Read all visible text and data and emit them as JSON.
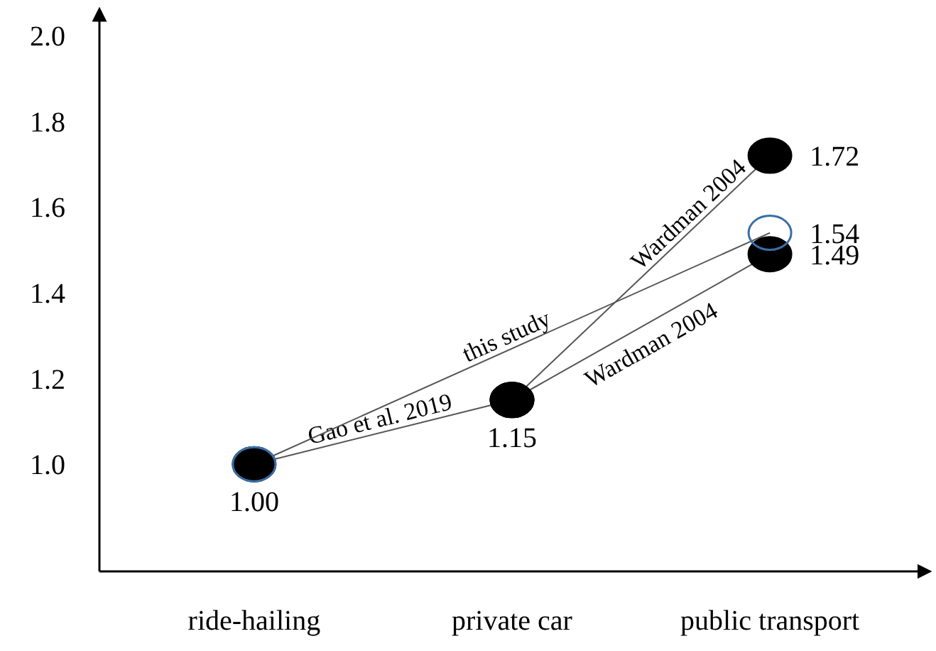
{
  "chart_data": {
    "type": "line",
    "categories": [
      "ride-hailing",
      "private car",
      "public transport"
    ],
    "series": [
      {
        "name": "Gao et al. 2019",
        "color": "#000000",
        "values": [
          1.0,
          1.15,
          null
        ],
        "value_labels": [
          "1.00",
          "1.15",
          null
        ]
      },
      {
        "name": "Wardman 2004",
        "color": "#000000",
        "values": [
          null,
          1.15,
          1.72
        ],
        "value_labels": [
          null,
          null,
          "1.72"
        ]
      },
      {
        "name": "Wardman 2004",
        "color": "#000000",
        "values": [
          null,
          1.15,
          1.49
        ],
        "value_labels": [
          null,
          null,
          "1.49"
        ]
      },
      {
        "name": "this study",
        "color": "#3a6ea5",
        "values": [
          1.0,
          null,
          1.54
        ],
        "value_labels": [
          null,
          null,
          "1.54"
        ]
      }
    ],
    "ylim": [
      0.75,
      2.05
    ],
    "yticks": [
      {
        "value": 1.0,
        "label": "1.0"
      },
      1.2,
      1.4,
      1.6,
      1.8,
      {
        "value": 2.0,
        "label": "2.0"
      }
    ],
    "marker": "circle",
    "grid": false
  }
}
